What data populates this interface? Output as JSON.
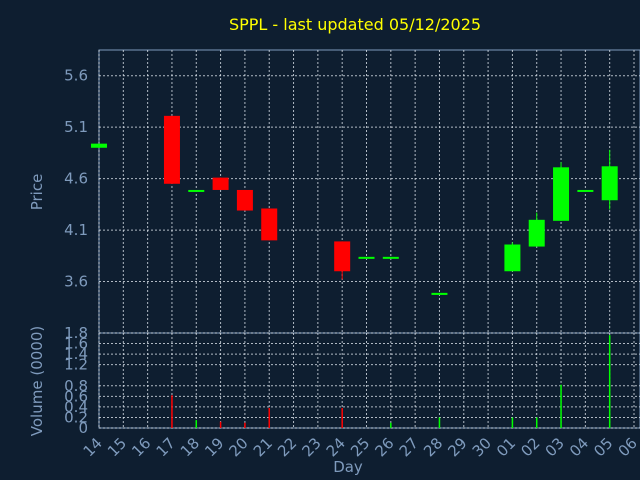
{
  "chart_data": {
    "type": "candlestick",
    "title": "SPPL - last updated 05/12/2025",
    "xlabel": "Day",
    "price_panel": {
      "ylabel": "Price",
      "ylim": [
        3.1,
        5.85
      ],
      "yticks": [
        "3.6",
        "4.1",
        "4.6",
        "5.1",
        "5.6"
      ],
      "grid": true
    },
    "volume_panel": {
      "ylabel": "Volume (0000)",
      "ylim": [
        0,
        1.8
      ],
      "yticks": [
        "0",
        "0.2",
        "0.4",
        "0.6",
        "0.8",
        "1.2",
        "1.4",
        "1.6",
        "1.8"
      ],
      "grid": true
    },
    "categories": [
      "14",
      "15",
      "16",
      "17",
      "18",
      "19",
      "20",
      "21",
      "22",
      "23",
      "24",
      "25",
      "26",
      "27",
      "28",
      "29",
      "30",
      "01",
      "02",
      "03",
      "04",
      "05",
      "06"
    ],
    "candles": [
      {
        "day": "14",
        "open": 4.9,
        "close": 4.94,
        "high": 4.94,
        "low": 4.9
      },
      {
        "day": "17",
        "open": 5.21,
        "close": 4.55,
        "high": 5.21,
        "low": 4.55
      },
      {
        "day": "18",
        "open": 4.49,
        "close": 4.49,
        "high": 4.49,
        "low": 4.49
      },
      {
        "day": "19",
        "open": 4.61,
        "close": 4.49,
        "high": 4.61,
        "low": 4.49
      },
      {
        "day": "20",
        "open": 4.49,
        "close": 4.29,
        "high": 4.49,
        "low": 4.29
      },
      {
        "day": "21",
        "open": 4.31,
        "close": 4.0,
        "high": 4.31,
        "low": 4.0
      },
      {
        "day": "24",
        "open": 3.99,
        "close": 3.7,
        "high": 3.99,
        "low": 3.62
      },
      {
        "day": "25",
        "open": 3.84,
        "close": 3.84,
        "high": 3.84,
        "low": 3.84
      },
      {
        "day": "26",
        "open": 3.84,
        "close": 3.84,
        "high": 3.84,
        "low": 3.84
      },
      {
        "day": "28",
        "open": 3.47,
        "close": 3.49,
        "high": 3.49,
        "low": 3.47
      },
      {
        "day": "01",
        "open": 3.7,
        "close": 3.96,
        "high": 3.98,
        "low": 3.7
      },
      {
        "day": "02",
        "open": 3.94,
        "close": 4.2,
        "high": 4.27,
        "low": 3.94
      },
      {
        "day": "03",
        "open": 4.19,
        "close": 4.71,
        "high": 4.76,
        "low": 4.19
      },
      {
        "day": "04",
        "open": 4.49,
        "close": 4.49,
        "high": 4.49,
        "low": 4.49
      },
      {
        "day": "05",
        "open": 4.39,
        "close": 4.72,
        "high": 4.88,
        "low": 4.3
      }
    ],
    "volumes": [
      {
        "day": "17",
        "value": 0.62,
        "color": "red"
      },
      {
        "day": "18",
        "value": 0.15,
        "color": "green"
      },
      {
        "day": "19",
        "value": 0.12,
        "color": "red"
      },
      {
        "day": "20",
        "value": 0.1,
        "color": "red"
      },
      {
        "day": "21",
        "value": 0.38,
        "color": "red"
      },
      {
        "day": "24",
        "value": 0.38,
        "color": "red"
      },
      {
        "day": "26",
        "value": 0.1,
        "color": "green"
      },
      {
        "day": "28",
        "value": 0.2,
        "color": "green"
      },
      {
        "day": "01",
        "value": 0.2,
        "color": "green"
      },
      {
        "day": "02",
        "value": 0.2,
        "color": "green"
      },
      {
        "day": "03",
        "value": 0.82,
        "color": "green"
      },
      {
        "day": "05",
        "value": 1.76,
        "color": "green"
      }
    ],
    "colors": {
      "background": "#0e1e30",
      "plot_border": "#7f9bbd",
      "up": "#00ff00",
      "down": "#ff0000",
      "title": "#ffff00",
      "text": "#7f9bbd"
    }
  }
}
